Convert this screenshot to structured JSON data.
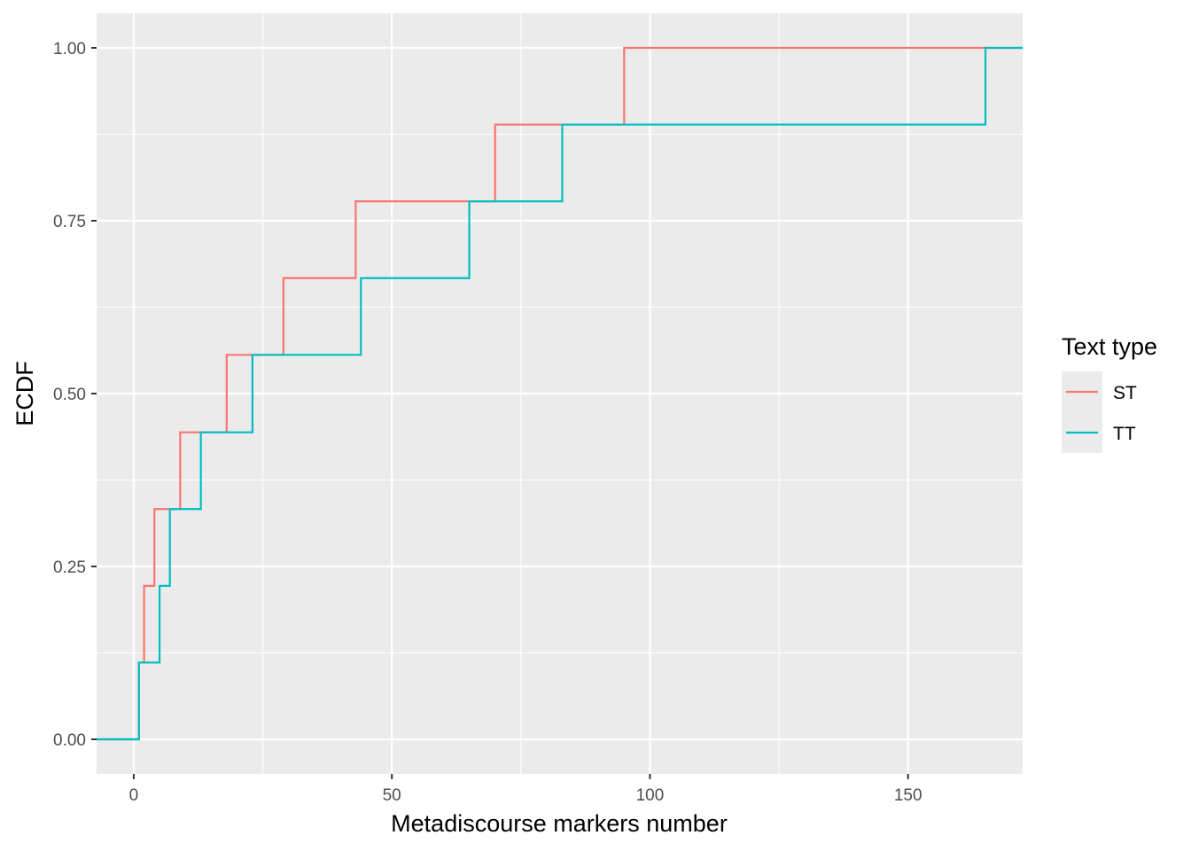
{
  "chart_data": {
    "type": "line",
    "step": true,
    "title": "",
    "xlabel": "Metadiscourse markers number",
    "ylabel": "ECDF",
    "xlim": [
      -7.2,
      172.2
    ],
    "ylim": [
      -0.05,
      1.05
    ],
    "x_ticks": [
      0,
      50,
      100,
      150
    ],
    "y_ticks": [
      0,
      0.25,
      0.5,
      0.75,
      1
    ],
    "x_tick_labels": [
      "0",
      "50",
      "100",
      "150"
    ],
    "y_tick_labels": [
      "0.00",
      "0.25",
      "0.50",
      "0.75",
      "1.00"
    ],
    "grid": true,
    "background": "#ebebeb",
    "legend": {
      "title": "Text type",
      "position": "right"
    },
    "series": [
      {
        "name": "ST",
        "color": "#F8766D",
        "x": [
          1,
          2,
          4,
          9,
          18,
          29,
          43,
          70,
          95
        ],
        "y": [
          0.111,
          0.222,
          0.333,
          0.444,
          0.556,
          0.667,
          0.778,
          0.889,
          1.0
        ]
      },
      {
        "name": "TT",
        "color": "#00BFC4",
        "x": [
          1,
          5,
          7,
          13,
          23,
          44,
          65,
          83,
          165
        ],
        "y": [
          0.111,
          0.222,
          0.333,
          0.444,
          0.556,
          0.667,
          0.778,
          0.889,
          1.0
        ]
      }
    ]
  }
}
